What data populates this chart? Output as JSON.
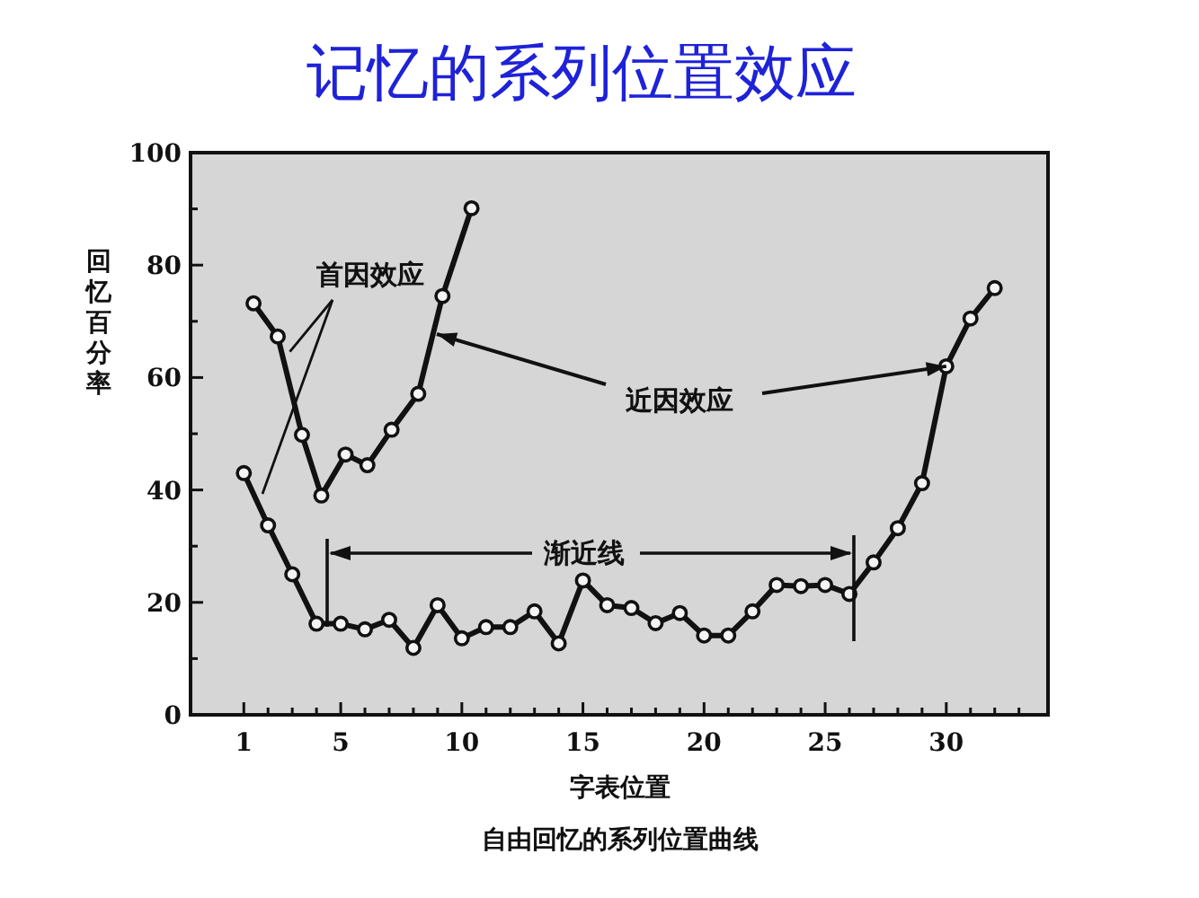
{
  "chart_data": {
    "type": "line",
    "title": "记忆的系列位置效应",
    "xlabel": "字表位置",
    "ylabel": "回忆百分率",
    "annotations": [
      {
        "text": "首因效应",
        "x": 2.9,
        "y": 64.6
      },
      {
        "text": "近因效应",
        "x": 30,
        "y": 62
      },
      "渐近线",
      "自由回忆的系列位置曲线"
    ],
    "marker": "circle",
    "line_style": "solid",
    "grid": false,
    "xlim": [
      -1.2,
      34.2
    ],
    "ylim": [
      0,
      100
    ],
    "xticks": [
      1,
      {
        "value": 2,
        "label": null
      },
      {
        "value": 3,
        "label": null
      },
      {
        "value": 4,
        "label": null
      },
      5,
      {
        "value": 6,
        "label": null
      },
      {
        "value": 7,
        "label": null
      },
      {
        "value": 8,
        "label": null
      },
      {
        "value": 9,
        "label": null
      },
      10,
      {
        "value": 11,
        "label": null
      },
      {
        "value": 12,
        "label": null
      },
      {
        "value": 13,
        "label": null
      },
      {
        "value": 14,
        "label": null
      },
      15,
      {
        "value": 16,
        "label": null
      },
      {
        "value": 17,
        "label": null
      },
      {
        "value": 18,
        "label": null
      },
      {
        "value": 19,
        "label": null
      },
      20,
      {
        "value": 21,
        "label": null
      },
      {
        "value": 22,
        "label": null
      },
      {
        "value": 23,
        "label": null
      },
      {
        "value": 24,
        "label": null
      },
      25,
      {
        "value": 26,
        "label": null
      },
      {
        "value": 27,
        "label": null
      },
      {
        "value": 28,
        "label": null
      },
      {
        "value": 29,
        "label": null
      },
      30,
      {
        "value": 31,
        "label": null
      },
      {
        "value": 32,
        "label": null
      },
      {
        "value": 33,
        "label": null
      }
    ],
    "yticks": [
      0,
      {
        "value": 10,
        "label": null
      },
      20,
      {
        "value": 30,
        "label": null
      },
      40,
      {
        "value": 50,
        "label": null
      },
      60,
      {
        "value": 70,
        "label": null
      },
      80,
      {
        "value": 90,
        "label": null
      },
      100
    ],
    "series": [
      {
        "color": "#111111",
        "x": [
          1,
          2,
          3,
          4,
          5,
          6,
          7,
          8,
          9,
          10,
          11,
          12,
          13,
          14,
          15,
          16,
          17,
          18,
          19,
          20,
          21,
          22,
          23,
          24,
          25,
          26,
          27,
          28,
          29,
          30,
          31,
          32
        ],
        "values": [
          43,
          33.7,
          25,
          16.2,
          16.2,
          15.2,
          16.9,
          11.9,
          19.5,
          13.6,
          15.6,
          15.6,
          18.4,
          12.7,
          23.9,
          19.5,
          19,
          16.3,
          18.1,
          14.1,
          14.1,
          18.4,
          23.1,
          22.9,
          23.1,
          21.5,
          27.1,
          33.2,
          41.2,
          62,
          70.5,
          75.9
        ]
      },
      {
        "color": "#111111",
        "x": [
          1.4,
          2.4,
          3.4,
          4.2,
          5.2,
          6.1,
          7.1,
          8.2,
          9.2,
          10.4
        ],
        "values": [
          73.2,
          67.3,
          49.8,
          39,
          46.3,
          44.4,
          50.7,
          57.1,
          74.5,
          90.1
        ]
      }
    ]
  }
}
